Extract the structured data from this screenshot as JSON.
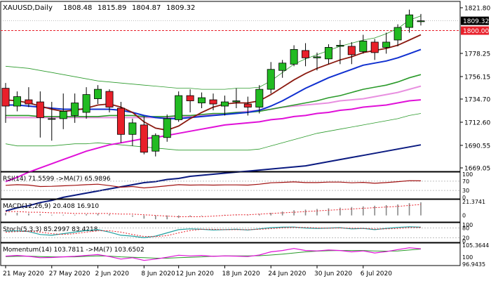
{
  "symbol_label": "XAUUSD,Daily",
  "ohlc": {
    "open": "1808.48",
    "high": "1815.89",
    "low": "1804.87",
    "close": "1809.32"
  },
  "price_tag": {
    "value": "1809.32",
    "bg": "#000000",
    "fg": "#ffffff"
  },
  "level_tag": {
    "value": "1800.00",
    "color": "#e8202a"
  },
  "indicators": {
    "rsi": {
      "label": "RSI(14) 71.5599 ->MA(7) 65.9896",
      "levels": [
        "100",
        "70",
        "30",
        "0"
      ]
    },
    "macd": {
      "label": "MACD(12,26,9) 20.408 16.910",
      "levels": [
        "21.3741",
        "0"
      ]
    },
    "stoch": {
      "label": "Stoch(5,3,3) 85.2997 83.4218",
      "levels": [
        "100",
        "80",
        "20",
        "0"
      ]
    },
    "momentum": {
      "label": "Momentum(14) 103.7811 ->MA(7) 103.6502",
      "levels": [
        "105.3644",
        "100",
        "96.9435"
      ]
    }
  },
  "x_axis_labels": [
    "21 May 2020",
    "27 May 2020",
    "2 Jun 2020",
    "8 Jun 2020",
    "12 Jun 2020",
    "18 Jun 2020",
    "24 Jun 2020",
    "30 Jun 2020",
    "6 Jul 2020"
  ],
  "colors": {
    "bull": "#22bb22",
    "bear": "#e8202a",
    "wick": "#000000",
    "ma_fast": "#8b1a10",
    "ma_mid": "#1030d0",
    "ma_green": "#2a9a2a",
    "ma_violet": "#e890e0",
    "ma_magenta": "#e010d8",
    "ma_navy": "#0a1a80",
    "bollinger": "#2a9a2a",
    "rsi": "#a01010",
    "macd_signal": "#e8202a",
    "stoch_main": "#20a0a0",
    "stoch_signal": "#e8202a",
    "momentum": "#e010d8"
  },
  "chart_data": {
    "type": "candlestick",
    "symbol": "XAUUSD",
    "timeframe": "Daily",
    "y_ticks": [
      1669.05,
      1690.55,
      1712.6,
      1734.7,
      1756.15,
      1778.25,
      1800.0,
      1821.8
    ],
    "ylim": [
      1665,
      1825
    ],
    "horizontal_level": 1800.0,
    "candles": [
      {
        "o": 1745,
        "h": 1750,
        "l": 1712,
        "c": 1728
      },
      {
        "o": 1728,
        "h": 1742,
        "l": 1723,
        "c": 1737
      },
      {
        "o": 1734,
        "h": 1746,
        "l": 1727,
        "c": 1730
      },
      {
        "o": 1732,
        "h": 1742,
        "l": 1698,
        "c": 1717
      },
      {
        "o": 1716,
        "h": 1732,
        "l": 1695,
        "c": 1716
      },
      {
        "o": 1716,
        "h": 1740,
        "l": 1706,
        "c": 1723
      },
      {
        "o": 1719,
        "h": 1740,
        "l": 1712,
        "c": 1731
      },
      {
        "o": 1722,
        "h": 1746,
        "l": 1716,
        "c": 1739
      },
      {
        "o": 1735,
        "h": 1748,
        "l": 1730,
        "c": 1744
      },
      {
        "o": 1742,
        "h": 1744,
        "l": 1722,
        "c": 1727
      },
      {
        "o": 1726,
        "h": 1732,
        "l": 1693,
        "c": 1701
      },
      {
        "o": 1701,
        "h": 1716,
        "l": 1690,
        "c": 1712
      },
      {
        "o": 1710,
        "h": 1718,
        "l": 1682,
        "c": 1684
      },
      {
        "o": 1685,
        "h": 1702,
        "l": 1680,
        "c": 1700
      },
      {
        "o": 1698,
        "h": 1720,
        "l": 1694,
        "c": 1716
      },
      {
        "o": 1715,
        "h": 1742,
        "l": 1713,
        "c": 1738
      },
      {
        "o": 1738,
        "h": 1744,
        "l": 1722,
        "c": 1733
      },
      {
        "o": 1731,
        "h": 1741,
        "l": 1726,
        "c": 1736
      },
      {
        "o": 1734,
        "h": 1740,
        "l": 1724,
        "c": 1730
      },
      {
        "o": 1728,
        "h": 1738,
        "l": 1719,
        "c": 1732
      },
      {
        "o": 1732,
        "h": 1745,
        "l": 1726,
        "c": 1733
      },
      {
        "o": 1730,
        "h": 1737,
        "l": 1719,
        "c": 1727
      },
      {
        "o": 1727,
        "h": 1748,
        "l": 1721,
        "c": 1744
      },
      {
        "o": 1744,
        "h": 1770,
        "l": 1740,
        "c": 1763
      },
      {
        "o": 1762,
        "h": 1772,
        "l": 1755,
        "c": 1769
      },
      {
        "o": 1768,
        "h": 1786,
        "l": 1766,
        "c": 1782
      },
      {
        "o": 1781,
        "h": 1788,
        "l": 1766,
        "c": 1774
      },
      {
        "o": 1774,
        "h": 1779,
        "l": 1762,
        "c": 1775
      },
      {
        "o": 1773,
        "h": 1787,
        "l": 1768,
        "c": 1784
      },
      {
        "o": 1785,
        "h": 1791,
        "l": 1768,
        "c": 1786
      },
      {
        "o": 1785,
        "h": 1789,
        "l": 1768,
        "c": 1777
      },
      {
        "o": 1780,
        "h": 1796,
        "l": 1778,
        "c": 1790
      },
      {
        "o": 1789,
        "h": 1792,
        "l": 1772,
        "c": 1779
      },
      {
        "o": 1784,
        "h": 1798,
        "l": 1778,
        "c": 1789
      },
      {
        "o": 1791,
        "h": 1806,
        "l": 1785,
        "c": 1803
      },
      {
        "o": 1803,
        "h": 1820,
        "l": 1798,
        "c": 1815
      },
      {
        "o": 1808.48,
        "h": 1815.89,
        "l": 1804.87,
        "c": 1809.32
      }
    ],
    "bollinger_upper": [
      1766,
      1765,
      1764,
      1762,
      1760,
      1758,
      1756,
      1754,
      1752,
      1751,
      1750,
      1749,
      1748,
      1747,
      1746,
      1745,
      1745,
      1744,
      1744,
      1744,
      1745,
      1745,
      1746,
      1752,
      1760,
      1768,
      1773,
      1777,
      1781,
      1785,
      1788,
      1791,
      1793,
      1797,
      1802,
      1810,
      1814
    ],
    "bollinger_mid": [
      1728,
      1727,
      1727,
      1726,
      1726,
      1725,
      1725,
      1725,
      1726,
      1726,
      1725,
      1724,
      1722,
      1721,
      1720,
      1720,
      1720,
      1720,
      1720,
      1720,
      1720,
      1720,
      1721,
      1724,
      1728,
      1732,
      1736,
      1740,
      1744,
      1748,
      1752,
      1756,
      1758,
      1761,
      1765,
      1769,
      1772
    ],
    "bollinger_lower": [
      1692,
      1690,
      1690,
      1690,
      1690,
      1691,
      1692,
      1692,
      1693,
      1692,
      1691,
      1690,
      1689,
      1688,
      1687,
      1686,
      1686,
      1686,
      1686,
      1686,
      1686,
      1686,
      1687,
      1690,
      1693,
      1696,
      1699,
      1702,
      1704,
      1706,
      1708,
      1710,
      1712,
      1714,
      1716,
      1719,
      1721
    ],
    "ma_fast": [
      1734,
      1733,
      1731,
      1728,
      1725,
      1723,
      1724,
      1726,
      1729,
      1730,
      1727,
      1722,
      1713,
      1707,
      1705,
      1709,
      1716,
      1722,
      1727,
      1730,
      1731,
      1731,
      1733,
      1739,
      1746,
      1753,
      1759,
      1764,
      1768,
      1772,
      1775,
      1779,
      1781,
      1783,
      1786,
      1791,
      1796
    ],
    "ma_mid": [
      1729,
      1729,
      1728,
      1727,
      1726,
      1725,
      1725,
      1725,
      1725,
      1725,
      1724,
      1722,
      1719,
      1717,
      1716,
      1716,
      1717,
      1718,
      1719,
      1720,
      1721,
      1722,
      1724,
      1728,
      1733,
      1739,
      1745,
      1750,
      1755,
      1759,
      1763,
      1767,
      1769,
      1771,
      1774,
      1778,
      1782
    ],
    "ma_green": [
      1719,
      1719,
      1719,
      1718,
      1718,
      1718,
      1718,
      1718,
      1718,
      1719,
      1719,
      1719,
      1718,
      1718,
      1718,
      1719,
      1719,
      1720,
      1721,
      1721,
      1722,
      1722,
      1723,
      1725,
      1727,
      1729,
      1731,
      1733,
      1736,
      1738,
      1741,
      1744,
      1746,
      1748,
      1751,
      1755,
      1758
    ],
    "ma_violet": [
      1717,
      1717,
      1717,
      1717,
      1717,
      1717,
      1717,
      1717,
      1717,
      1717,
      1717,
      1717,
      1717,
      1717,
      1717,
      1718,
      1718,
      1719,
      1720,
      1721,
      1722,
      1723,
      1724,
      1725,
      1727,
      1728,
      1729,
      1730,
      1731,
      1733,
      1734,
      1735,
      1737,
      1739,
      1741,
      1744,
      1747
    ],
    "ma_magenta": [
      1656,
      1660,
      1665,
      1669,
      1673,
      1677,
      1681,
      1685,
      1688,
      1691,
      1693,
      1695,
      1697,
      1698,
      1700,
      1702,
      1704,
      1706,
      1708,
      1710,
      1711,
      1712,
      1713,
      1715,
      1716,
      1718,
      1719,
      1721,
      1722,
      1724,
      1725,
      1727,
      1728,
      1729,
      1731,
      1733,
      1734
    ],
    "ma_navy": [
      1628,
      1631,
      1633,
      1636,
      1638,
      1641,
      1643,
      1645,
      1647,
      1649,
      1651,
      1653,
      1655,
      1656,
      1658,
      1659,
      1661,
      1662,
      1663,
      1664,
      1665,
      1666,
      1667,
      1668,
      1669,
      1670,
      1671,
      1673,
      1675,
      1677,
      1679,
      1681,
      1683,
      1685,
      1687,
      1689,
      1691
    ],
    "rsi": [
      52,
      55,
      53,
      47,
      48,
      50,
      52,
      55,
      57,
      51,
      44,
      47,
      41,
      45,
      50,
      55,
      53,
      54,
      53,
      54,
      54,
      53,
      57,
      63,
      65,
      67,
      64,
      64,
      66,
      66,
      63,
      65,
      61,
      64,
      68,
      72,
      71.5599
    ],
    "macd_hist": [
      4,
      4,
      3,
      2,
      1,
      1,
      1,
      2,
      3,
      2,
      0,
      -2,
      -5,
      -6,
      -6,
      -4,
      -2,
      -1,
      0,
      1,
      1,
      1,
      2,
      4,
      6,
      8,
      9,
      10,
      11,
      12,
      13,
      14,
      15,
      16,
      17,
      19,
      20.408
    ],
    "macd_signal": [
      6,
      6,
      5,
      5,
      4,
      4,
      3,
      3,
      3,
      3,
      2,
      2,
      1,
      0,
      -1,
      -2,
      -2,
      -2,
      -1,
      0,
      1,
      1,
      2,
      3,
      4,
      5,
      6,
      7,
      8,
      9,
      10,
      11,
      12,
      13,
      14,
      15.5,
      16.91
    ],
    "stoch_main": [
      60,
      62,
      58,
      40,
      35,
      45,
      55,
      65,
      70,
      55,
      35,
      30,
      20,
      30,
      50,
      70,
      75,
      72,
      68,
      70,
      72,
      68,
      75,
      82,
      85,
      86,
      80,
      78,
      80,
      82,
      75,
      78,
      70,
      78,
      84,
      88,
      85.2997
    ],
    "stoch_signal": [
      55,
      58,
      60,
      55,
      45,
      40,
      45,
      55,
      63,
      63,
      55,
      40,
      28,
      27,
      33,
      50,
      65,
      72,
      72,
      70,
      70,
      70,
      72,
      76,
      81,
      84,
      84,
      81,
      79,
      80,
      79,
      78,
      74,
      75,
      77,
      83,
      83.4218
    ],
    "momentum": [
      100.5,
      100.8,
      100.4,
      99.8,
      99.9,
      100.2,
      100.4,
      100.8,
      101.2,
      100.3,
      99.2,
      99.8,
      98.6,
      99.2,
      100.0,
      100.9,
      100.6,
      100.8,
      100.4,
      100.6,
      100.5,
      100.3,
      101.0,
      102.4,
      103.0,
      103.9,
      103.0,
      102.8,
      103.2,
      103.0,
      102.4,
      102.8,
      101.9,
      102.5,
      103.4,
      104.2,
      103.7811
    ],
    "momentum_ma": [
      100.3,
      100.4,
      100.5,
      100.3,
      100.2,
      100.2,
      100.2,
      100.4,
      100.6,
      100.5,
      100.2,
      100.0,
      99.8,
      99.6,
      99.6,
      99.8,
      100.0,
      100.2,
      100.5,
      100.6,
      100.6,
      100.6,
      100.7,
      101.0,
      101.4,
      101.9,
      102.4,
      102.7,
      102.9,
      103.0,
      103.0,
      103.0,
      102.8,
      102.7,
      102.8,
      103.2,
      103.6502
    ]
  }
}
